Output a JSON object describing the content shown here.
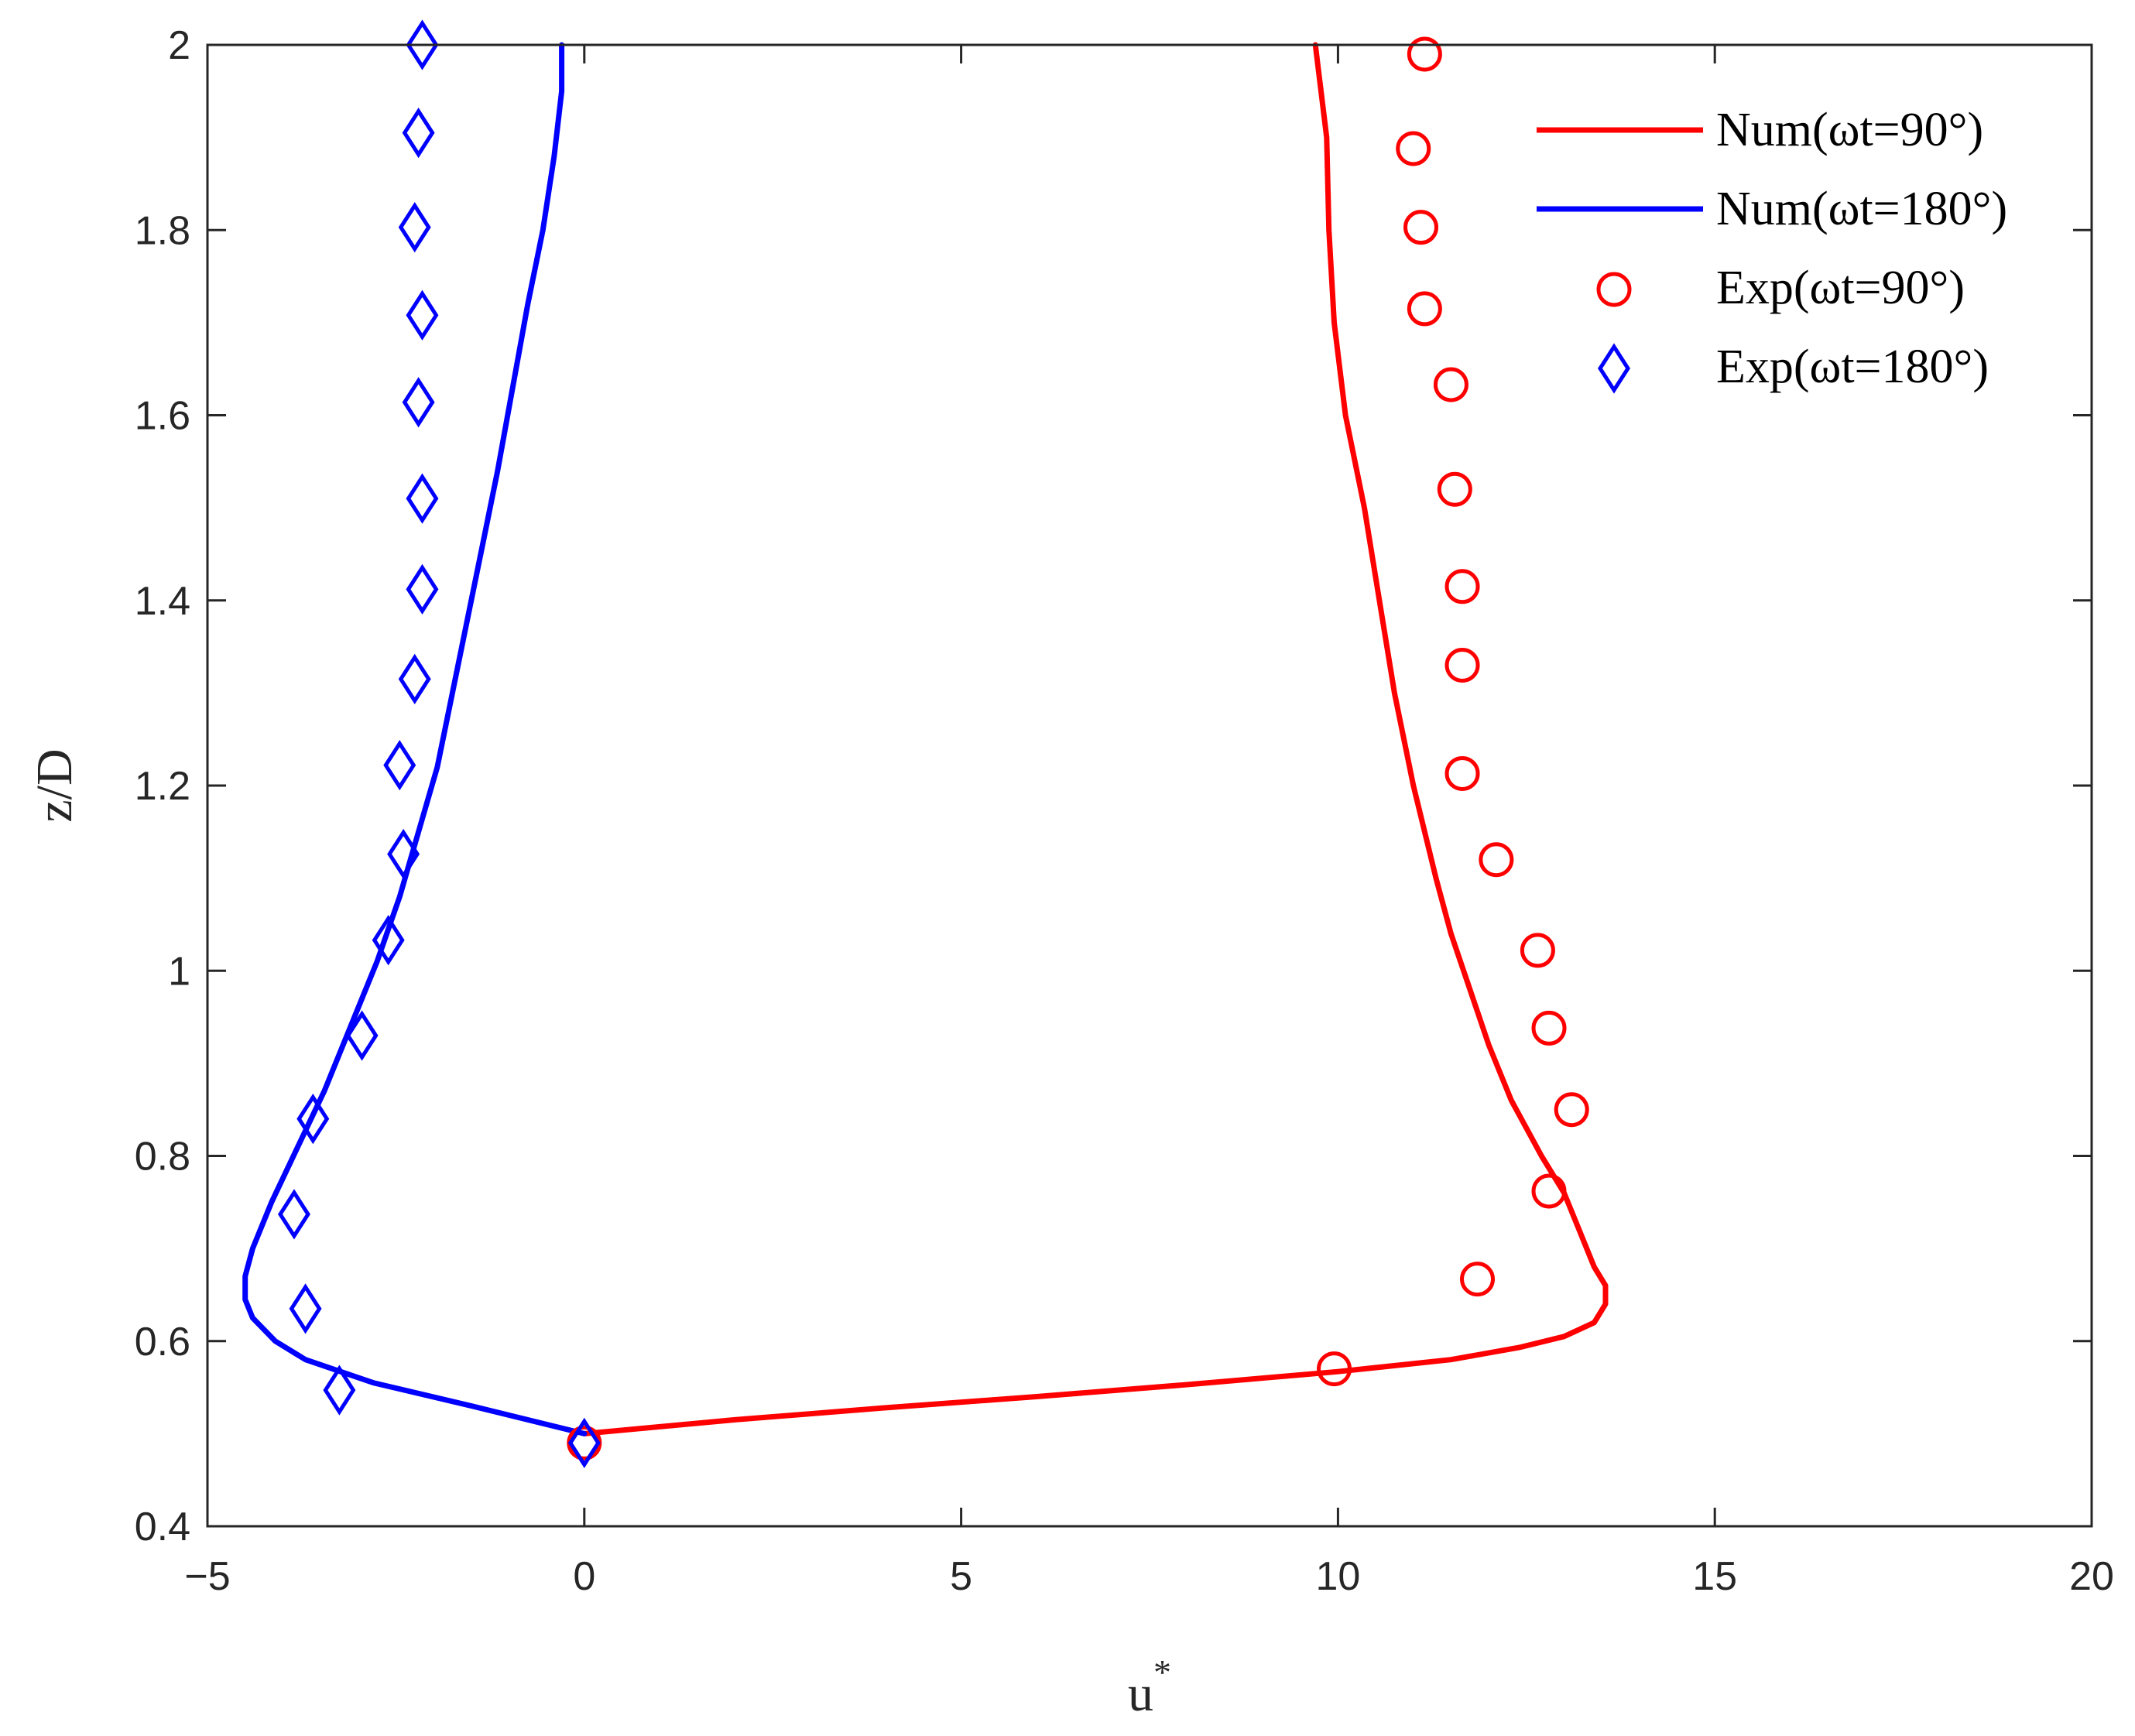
{
  "chart_data": {
    "type": "line",
    "xlabel": "u",
    "xlabel_superscript": "*",
    "ylabel": "z/D",
    "xlim": [
      -5,
      20
    ],
    "ylim": [
      0.4,
      2
    ],
    "xticks": [
      -5,
      0,
      5,
      10,
      15,
      20
    ],
    "xtick_labels": [
      "−5",
      "0",
      "5",
      "10",
      "15",
      "20"
    ],
    "yticks": [
      0.4,
      0.6,
      0.8,
      1.0,
      1.2,
      1.4,
      1.6,
      1.8,
      2.0
    ],
    "ytick_labels": [
      "0.4",
      "0.6",
      "0.8",
      "1",
      "1.2",
      "1.4",
      "1.6",
      "1.8",
      "2"
    ],
    "grid": false,
    "legend_position": "top-right",
    "series": [
      {
        "name": "Num(ωt=90°)",
        "kind": "line",
        "color": "#ff0000",
        "points": [
          [
            0,
            0.5
          ],
          [
            2,
            0.515
          ],
          [
            4,
            0.528
          ],
          [
            6,
            0.54
          ],
          [
            8,
            0.553
          ],
          [
            10,
            0.567
          ],
          [
            11.5,
            0.58
          ],
          [
            12.4,
            0.593
          ],
          [
            13,
            0.605
          ],
          [
            13.4,
            0.62
          ],
          [
            13.55,
            0.64
          ],
          [
            13.55,
            0.66
          ],
          [
            13.4,
            0.68
          ],
          [
            13.2,
            0.72
          ],
          [
            13.0,
            0.76
          ],
          [
            12.7,
            0.8
          ],
          [
            12.3,
            0.86
          ],
          [
            12.0,
            0.92
          ],
          [
            11.75,
            0.98
          ],
          [
            11.5,
            1.04
          ],
          [
            11.3,
            1.1
          ],
          [
            11.0,
            1.2
          ],
          [
            10.75,
            1.3
          ],
          [
            10.55,
            1.4
          ],
          [
            10.35,
            1.5
          ],
          [
            10.1,
            1.6
          ],
          [
            9.95,
            1.7
          ],
          [
            9.88,
            1.8
          ],
          [
            9.85,
            1.9
          ],
          [
            9.7,
            2.0
          ]
        ]
      },
      {
        "name": "Num(ωt=180°)",
        "kind": "line",
        "color": "#0000ff",
        "points": [
          [
            0,
            0.5
          ],
          [
            -1.5,
            0.53
          ],
          [
            -2.8,
            0.555
          ],
          [
            -3.7,
            0.58
          ],
          [
            -4.1,
            0.6
          ],
          [
            -4.4,
            0.625
          ],
          [
            -4.5,
            0.645
          ],
          [
            -4.5,
            0.67
          ],
          [
            -4.4,
            0.7
          ],
          [
            -4.15,
            0.75
          ],
          [
            -3.8,
            0.81
          ],
          [
            -3.45,
            0.87
          ],
          [
            -3.1,
            0.94
          ],
          [
            -2.75,
            1.01
          ],
          [
            -2.45,
            1.08
          ],
          [
            -2.2,
            1.15
          ],
          [
            -1.95,
            1.22
          ],
          [
            -1.75,
            1.3
          ],
          [
            -1.55,
            1.38
          ],
          [
            -1.35,
            1.46
          ],
          [
            -1.15,
            1.54
          ],
          [
            -0.95,
            1.63
          ],
          [
            -0.75,
            1.72
          ],
          [
            -0.55,
            1.8
          ],
          [
            -0.4,
            1.88
          ],
          [
            -0.3,
            1.95
          ],
          [
            -0.3,
            2.0
          ]
        ]
      },
      {
        "name": "Exp(ωt=90°)",
        "kind": "marker",
        "marker": "circle",
        "color": "#ff0000",
        "points": [
          [
            0,
            0.49
          ],
          [
            9.95,
            0.57
          ],
          [
            11.85,
            0.667
          ],
          [
            12.8,
            0.762
          ],
          [
            13.1,
            0.85
          ],
          [
            12.8,
            0.938
          ],
          [
            12.65,
            1.022
          ],
          [
            12.1,
            1.12
          ],
          [
            11.65,
            1.213
          ],
          [
            11.65,
            1.33
          ],
          [
            11.65,
            1.415
          ],
          [
            11.55,
            1.52
          ],
          [
            11.5,
            1.633
          ],
          [
            11.15,
            1.715
          ],
          [
            11.1,
            1.803
          ],
          [
            11.0,
            1.888
          ],
          [
            11.15,
            1.99
          ]
        ]
      },
      {
        "name": "Exp(ωt=180°)",
        "kind": "marker",
        "marker": "diamond",
        "color": "#0000ff",
        "points": [
          [
            0,
            0.49
          ],
          [
            -3.25,
            0.547
          ],
          [
            -3.7,
            0.635
          ],
          [
            -3.85,
            0.737
          ],
          [
            -3.6,
            0.84
          ],
          [
            -2.95,
            0.93
          ],
          [
            -2.6,
            1.033
          ],
          [
            -2.4,
            1.126
          ],
          [
            -2.45,
            1.222
          ],
          [
            -2.25,
            1.315
          ],
          [
            -2.15,
            1.412
          ],
          [
            -2.15,
            1.51
          ],
          [
            -2.2,
            1.614
          ],
          [
            -2.15,
            1.708
          ],
          [
            -2.25,
            1.803
          ],
          [
            -2.2,
            1.905
          ],
          [
            -2.15,
            2.0
          ]
        ]
      }
    ]
  }
}
